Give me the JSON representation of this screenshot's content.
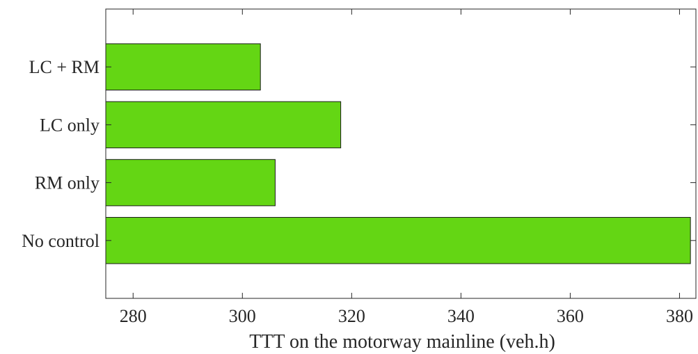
{
  "chart_data": {
    "type": "bar",
    "orientation": "horizontal",
    "categories": [
      "No control",
      "RM only",
      "LC only",
      "LC + RM"
    ],
    "values": [
      382,
      306,
      318,
      303.3
    ],
    "xlabel": "TTT on the motorway mainline (veh.h)",
    "ylabel": "",
    "title": "",
    "xlim": [
      275,
      383
    ],
    "xticks": [
      280,
      300,
      320,
      340,
      360,
      380
    ],
    "bar_color": "#64d614",
    "grid": false,
    "legend": "none"
  }
}
